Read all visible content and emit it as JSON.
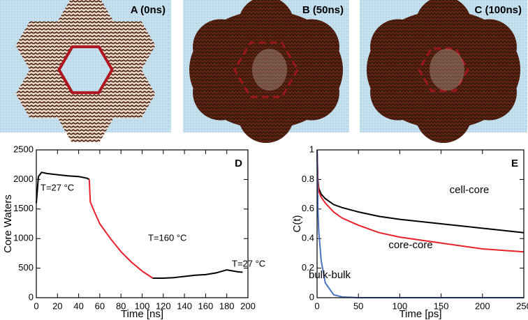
{
  "snapshots": [
    {
      "label": "A (0ns)"
    },
    {
      "label": "B (50ns)"
    },
    {
      "label": "C (100ns)"
    }
  ],
  "chart_data": [
    {
      "type": "line",
      "panel": "D",
      "xlabel": "Time  [ns]",
      "ylabel": "Core Waters",
      "xlim": [
        0,
        200
      ],
      "xticks": [
        0,
        20,
        40,
        60,
        80,
        100,
        120,
        140,
        160,
        180,
        200
      ],
      "ylim": [
        0,
        2500
      ],
      "yticks": [
        0,
        500,
        1000,
        1500,
        2000,
        2500
      ],
      "series": [
        {
          "color": "#000000",
          "x": [
            0,
            2,
            5,
            10,
            20,
            30,
            40,
            48,
            50
          ],
          "values": [
            1600,
            2050,
            2120,
            2100,
            2080,
            2060,
            2050,
            2020,
            2000
          ]
        },
        {
          "color": "#e8202a",
          "x": [
            50,
            51,
            55,
            60,
            70,
            80,
            90,
            100,
            110
          ],
          "values": [
            2000,
            1620,
            1450,
            1250,
            1000,
            780,
            600,
            450,
            330
          ]
        },
        {
          "color": "#000000",
          "x": [
            110,
            120,
            130,
            140,
            150,
            160,
            170,
            180,
            190,
            195
          ],
          "values": [
            330,
            330,
            340,
            360,
            380,
            390,
            420,
            470,
            440,
            430
          ]
        }
      ],
      "annotations": [
        {
          "text": "T=27 °C",
          "color": "#000000"
        },
        {
          "text": "T=160 °C",
          "color": "#e8202a"
        },
        {
          "text": "T=27 °C",
          "color": "#000000"
        }
      ]
    },
    {
      "type": "line",
      "panel": "E",
      "xlabel": "Time  [ps]",
      "ylabel": "C(t)",
      "xlim": [
        0,
        250
      ],
      "xticks": [
        0,
        50,
        100,
        150,
        200,
        250
      ],
      "ylim": [
        0,
        1
      ],
      "yticks": [
        0,
        0.2,
        0.4,
        0.6,
        0.8,
        1
      ],
      "series": [
        {
          "name": "cell-core",
          "color": "#000000",
          "x": [
            0,
            1,
            2,
            5,
            10,
            20,
            30,
            50,
            75,
            100,
            150,
            200,
            250
          ],
          "values": [
            1,
            0.8,
            0.74,
            0.7,
            0.67,
            0.63,
            0.61,
            0.58,
            0.55,
            0.53,
            0.5,
            0.47,
            0.44
          ]
        },
        {
          "name": "core-core",
          "color": "#e8202a",
          "x": [
            0,
            1,
            2,
            5,
            10,
            20,
            30,
            50,
            75,
            100,
            150,
            200,
            250
          ],
          "values": [
            1,
            0.78,
            0.72,
            0.68,
            0.64,
            0.58,
            0.54,
            0.49,
            0.44,
            0.41,
            0.37,
            0.33,
            0.31
          ]
        },
        {
          "name": "bulk-bulk",
          "color": "#4a72c0",
          "x": [
            0,
            1,
            2,
            5,
            10,
            20,
            30,
            50,
            75,
            100,
            150,
            200,
            250
          ],
          "values": [
            1,
            0.6,
            0.45,
            0.25,
            0.1,
            0.02,
            0.005,
            0,
            0,
            0,
            0,
            0,
            0
          ]
        }
      ]
    }
  ]
}
